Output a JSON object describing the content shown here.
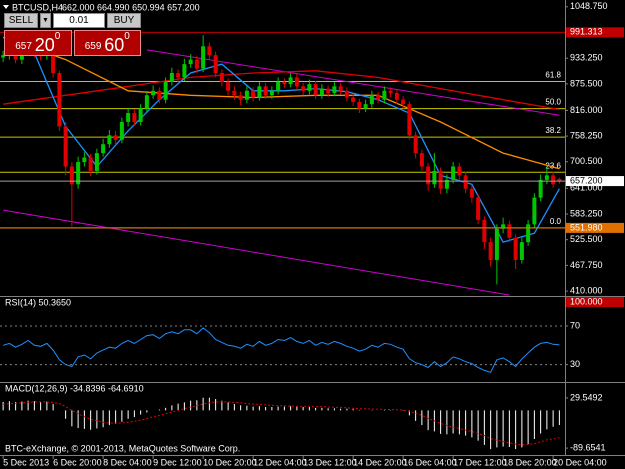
{
  "header": {
    "symbol": "BTCUSD,H4",
    "ohlc": "662.000 664.990 650.994 657.200"
  },
  "trade_panel": {
    "sell": {
      "label": "SELL",
      "price": "657",
      "pips": "20",
      "point": "0"
    },
    "lots": "0.01",
    "buy": {
      "label": "BUY",
      "price": "659",
      "pips": "60",
      "point": "0"
    }
  },
  "footer": "BTC-eXchange, © 2001-2013, MetaQuotes Software Corp.",
  "chart_data": [
    {
      "type": "candlestick",
      "up_color": "#00c800",
      "down_color": "#e00000",
      "open": [
        935,
        940,
        955,
        930,
        948,
        960,
        945,
        938,
        950,
        900,
        780,
        690,
        650,
        700,
        710,
        680,
        720,
        740,
        760,
        750,
        790,
        810,
        790,
        820,
        850,
        860,
        840,
        880,
        900,
        890,
        920,
        930,
        910,
        960,
        940,
        900,
        880,
        860,
        850,
        840,
        860,
        845,
        870,
        850,
        860,
        880,
        875,
        890,
        870,
        860,
        875,
        850,
        865,
        855,
        870,
        860,
        845,
        835,
        820,
        830,
        850,
        840,
        860,
        855,
        840,
        830,
        760,
        720,
        690,
        650,
        680,
        640,
        660,
        690,
        670,
        640,
        620,
        570,
        520,
        480,
        550,
        560,
        530,
        480,
        520,
        560,
        620,
        660,
        670,
        662
      ],
      "high": [
        950,
        965,
        962,
        958,
        972,
        968,
        952,
        960,
        958,
        905,
        790,
        700,
        712,
        722,
        718,
        730,
        752,
        772,
        770,
        800,
        822,
        818,
        830,
        860,
        872,
        868,
        890,
        912,
        908,
        932,
        942,
        938,
        985,
        968,
        948,
        908,
        888,
        870,
        858,
        870,
        868,
        880,
        878,
        870,
        890,
        888,
        900,
        898,
        878,
        885,
        882,
        875,
        872,
        880,
        878,
        868,
        852,
        842,
        840,
        860,
        858,
        870,
        868,
        862,
        848,
        836,
        768,
        728,
        698,
        720,
        688,
        672,
        700,
        698,
        678,
        648,
        628,
        578,
        530,
        560,
        575,
        568,
        538,
        530,
        570,
        630,
        672,
        690,
        678,
        664.99
      ],
      "low": [
        925,
        930,
        922,
        920,
        940,
        936,
        928,
        930,
        890,
        770,
        670,
        555,
        640,
        690,
        668,
        672,
        712,
        732,
        740,
        742,
        780,
        782,
        782,
        812,
        842,
        832,
        832,
        872,
        880,
        882,
        912,
        900,
        902,
        930,
        890,
        870,
        850,
        840,
        828,
        832,
        836,
        838,
        842,
        842,
        852,
        866,
        868,
        862,
        850,
        852,
        842,
        842,
        846,
        848,
        852,
        836,
        826,
        810,
        812,
        822,
        832,
        832,
        846,
        830,
        820,
        750,
        708,
        680,
        635,
        642,
        628,
        630,
        652,
        660,
        630,
        608,
        560,
        505,
        465,
        425,
        540,
        520,
        460,
        472,
        512,
        552,
        612,
        650,
        642,
        650.994
      ],
      "close": [
        940,
        955,
        930,
        948,
        960,
        945,
        938,
        950,
        900,
        780,
        690,
        650,
        700,
        710,
        680,
        720,
        740,
        760,
        750,
        790,
        810,
        790,
        820,
        850,
        860,
        840,
        880,
        900,
        890,
        920,
        930,
        910,
        960,
        940,
        900,
        880,
        860,
        850,
        840,
        860,
        845,
        870,
        850,
        860,
        880,
        875,
        890,
        870,
        860,
        875,
        850,
        865,
        855,
        870,
        860,
        845,
        835,
        820,
        830,
        850,
        840,
        860,
        855,
        840,
        830,
        760,
        720,
        690,
        650,
        680,
        640,
        660,
        690,
        670,
        640,
        620,
        570,
        520,
        480,
        550,
        560,
        530,
        480,
        520,
        560,
        620,
        660,
        670,
        650,
        657.2
      ],
      "xlim": [
        -0.5,
        89.9
      ],
      "ylim": [
        399,
        1064
      ],
      "yticks": [
        {
          "value": 1048.75,
          "label": "1048.750"
        },
        {
          "value": 933.25,
          "label": "933.250"
        },
        {
          "value": 875.5,
          "label": "875.500"
        },
        {
          "value": 816,
          "label": "816.000"
        },
        {
          "value": 758.25,
          "label": "758.250"
        },
        {
          "value": 700.5,
          "label": "700.500"
        },
        {
          "value": 641,
          "label": "641.000"
        },
        {
          "value": 583.25,
          "label": "583.250"
        },
        {
          "value": 525.5,
          "label": "525.500"
        },
        {
          "value": 467.75,
          "label": "467.750"
        },
        {
          "value": 410,
          "label": "410.000"
        }
      ],
      "xticks": [
        {
          "value": 0,
          "label": "5 Dec 2013"
        },
        {
          "value": 8,
          "label": "6 Dec 20:00"
        },
        {
          "value": 16,
          "label": "8 Dec 04:00"
        },
        {
          "value": 24,
          "label": "9 Dec 12:00"
        },
        {
          "value": 32,
          "label": "10 Dec 20:00"
        },
        {
          "value": 40,
          "label": "12 Dec 04:00"
        },
        {
          "value": 48,
          "label": "13 Dec 12:00"
        },
        {
          "value": 56,
          "label": "14 Dec 20:00"
        },
        {
          "value": 64,
          "label": "16 Dec 04:00"
        },
        {
          "value": 72,
          "label": "17 Dec 12:00"
        },
        {
          "value": 80,
          "label": "18 Dec 20:00"
        },
        {
          "value": 88,
          "label": "20 Dec 04:00"
        }
      ],
      "lines": [
        {
          "color": "#e00000",
          "x": [
            0,
            10,
            20,
            30,
            40,
            50,
            60,
            70,
            80,
            89
          ],
          "values": [
            830,
            850,
            870,
            890,
            900,
            905,
            890,
            865,
            840,
            818
          ]
        },
        {
          "color": "#ff8c00",
          "x": [
            0,
            10,
            20,
            30,
            40,
            50,
            60,
            70,
            80,
            89
          ],
          "values": [
            980,
            930,
            860,
            850,
            845,
            850,
            850,
            790,
            720,
            685
          ]
        },
        {
          "color": "#1e90ff",
          "x": [
            0,
            5,
            10,
            15,
            20,
            25,
            30,
            35,
            40,
            45,
            50,
            55,
            60,
            65,
            70,
            75,
            80,
            85,
            89
          ],
          "values": [
            940,
            945,
            780,
            690,
            770,
            840,
            900,
            920,
            860,
            860,
            865,
            858,
            840,
            810,
            670,
            650,
            520,
            540,
            640
          ]
        }
      ],
      "trendlines": [
        {
          "color": "#d000d0",
          "x": [
            23,
            89
          ],
          "values": [
            952,
            805
          ]
        },
        {
          "color": "#d000d0",
          "x": [
            0,
            81
          ],
          "values": [
            592,
            401
          ]
        }
      ],
      "fib_color": "#c8c800",
      "fib_levels": [
        {
          "label": "61.8",
          "value": 881
        },
        {
          "label": "50.0",
          "value": 820
        },
        {
          "label": "38.2",
          "value": 756
        },
        {
          "label": "23.6",
          "value": 677
        },
        {
          "label": "0.0",
          "value": 552
        }
      ],
      "levels": [
        {
          "value": 991.313,
          "label": "991.313",
          "color": "#c00000"
        },
        {
          "value": 551.98,
          "label": "551.980",
          "color": "#e07000"
        }
      ],
      "bid": {
        "value": 657.2,
        "label": "657.200"
      }
    },
    {
      "type": "line",
      "title": "RSI(14) 50.3650",
      "color": "#1e90ff",
      "ylim": [
        12,
        100
      ],
      "yticks": [
        70,
        30
      ],
      "grid": true,
      "max_label": {
        "value": 100,
        "label": "100.000"
      },
      "values": [
        50,
        52,
        48,
        51,
        55,
        50,
        49,
        52,
        45,
        35,
        30,
        28,
        38,
        40,
        36,
        42,
        45,
        48,
        47,
        52,
        55,
        52,
        56,
        60,
        61,
        57,
        62,
        64,
        62,
        66,
        66,
        62,
        68,
        63,
        56,
        53,
        50,
        49,
        47,
        51,
        49,
        54,
        50,
        52,
        56,
        55,
        58,
        54,
        52,
        55,
        50,
        53,
        51,
        54,
        52,
        49,
        47,
        44,
        46,
        50,
        48,
        52,
        51,
        48,
        46,
        36,
        32,
        30,
        27,
        33,
        28,
        32,
        38,
        36,
        33,
        31,
        27,
        24,
        22,
        35,
        37,
        33,
        28,
        36,
        42,
        48,
        52,
        53,
        51,
        50.365
      ]
    },
    {
      "type": "macd",
      "title": "MACD(12,26,9) -34.8396 -64.6910",
      "hist_color": "#ffffff",
      "signal_color": "#e00000",
      "ylim": [
        -106,
        65
      ],
      "yticks": [
        29.5492,
        -89.6541
      ],
      "histogram": [
        20,
        22,
        20,
        21,
        23,
        22,
        20,
        21,
        15,
        0,
        -20,
        -38,
        -42,
        -44,
        -46,
        -43,
        -40,
        -35,
        -32,
        -27,
        -20,
        -16,
        -10,
        -5,
        0,
        2,
        6,
        12,
        16,
        19,
        23,
        24,
        30,
        30,
        27,
        23,
        19,
        15,
        12,
        11,
        9,
        10,
        8,
        8,
        9,
        9,
        10,
        9,
        8,
        8,
        6,
        6,
        5,
        5,
        4,
        4,
        3,
        1,
        0,
        1,
        0,
        1,
        1,
        0,
        -1,
        -12,
        -25,
        -35,
        -47,
        -50,
        -56,
        -57,
        -55,
        -57,
        -60,
        -64,
        -72,
        -82,
        -92,
        -88,
        -86,
        -87,
        -92,
        -88,
        -80,
        -68,
        -55,
        -45,
        -39,
        -34.8396
      ],
      "signal": [
        15,
        16,
        17,
        18,
        19,
        20,
        20,
        20,
        19,
        16,
        9,
        0,
        -8,
        -15,
        -21,
        -25,
        -28,
        -30,
        -30,
        -30,
        -28,
        -26,
        -23,
        -19,
        -15,
        -12,
        -8,
        -4,
        0,
        4,
        8,
        11,
        15,
        18,
        20,
        20,
        20,
        19,
        18,
        16,
        15,
        14,
        13,
        12,
        11,
        11,
        10,
        10,
        10,
        10,
        9,
        9,
        8,
        7,
        7,
        6,
        5,
        4,
        4,
        3,
        3,
        2,
        2,
        1,
        1,
        -2,
        -6,
        -12,
        -19,
        -25,
        -31,
        -36,
        -40,
        -43,
        -47,
        -50,
        -55,
        -60,
        -67,
        -71,
        -74,
        -77,
        -80,
        -82,
        -81,
        -79,
        -75,
        -70,
        -68,
        -64.691
      ]
    }
  ]
}
